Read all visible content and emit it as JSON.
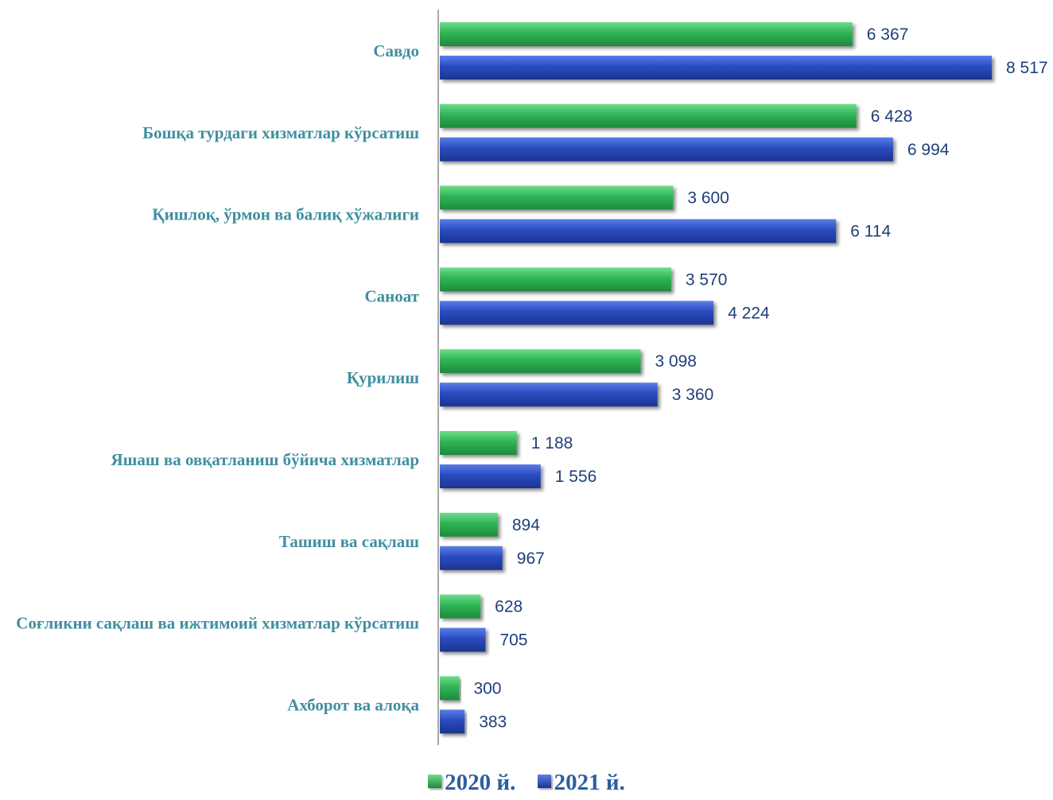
{
  "chart_data": {
    "type": "bar",
    "orientation": "horizontal",
    "categories": [
      "Савдо",
      "Бошқа турдаги хизматлар кўрсатиш",
      "Қишлоқ, ўрмон  ва балиқ хўжалиги",
      "Саноат",
      "Қурилиш",
      "Яшаш ва овқатланиш бўйича хизматлар",
      "Ташиш ва сақлаш",
      "Соғликни сақлаш ва ижтимоий хизматлар кўрсатиш",
      "Ахборот ва алоқа"
    ],
    "series": [
      {
        "name": "2020 й.",
        "color": "#2ea84e",
        "values": [
          6367,
          6428,
          3600,
          3570,
          3098,
          1188,
          894,
          628,
          300
        ],
        "labels": [
          "6 367",
          "6 428",
          "3 600",
          "3 570",
          "3 098",
          "1 188",
          "894",
          "628",
          "300"
        ]
      },
      {
        "name": "2021 й.",
        "color": "#2a4bb8",
        "values": [
          8517,
          6994,
          6114,
          4224,
          3360,
          1556,
          967,
          705,
          383
        ],
        "labels": [
          "8 517",
          "6 994",
          "6 114",
          "4 224",
          "3 360",
          "1 556",
          "967",
          "705",
          "383"
        ]
      }
    ],
    "xlim": [
      0,
      8517
    ],
    "grid": false,
    "legend_position": "bottom"
  }
}
